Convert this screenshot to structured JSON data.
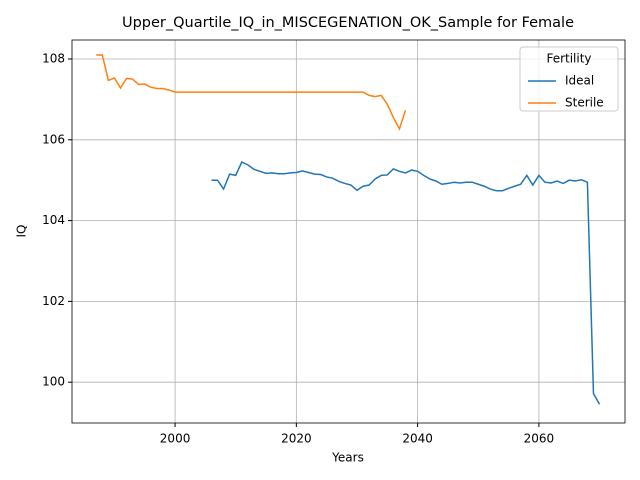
{
  "chart_data": {
    "type": "line",
    "title": "Upper_Quartile_IQ_in_MISCEGENATION_OK_Sample for Female",
    "x_label": "Years",
    "y_label": "IQ",
    "xlim": [
      1983,
      2074.2
    ],
    "ylim": [
      98.99,
      108.47
    ],
    "xticks": [
      2000,
      2020,
      2040,
      2060
    ],
    "yticks": [
      100,
      102,
      104,
      106,
      108
    ],
    "grid": true,
    "legend_title": "Fertility",
    "legend_position": "upper right",
    "series": [
      {
        "name": "Ideal",
        "color": "#1f77b4",
        "x": [
          2006,
          2007,
          2008,
          2009,
          2010,
          2011,
          2012,
          2013,
          2014,
          2015,
          2016,
          2017,
          2018,
          2019,
          2020,
          2021,
          2022,
          2023,
          2024,
          2025,
          2026,
          2027,
          2028,
          2029,
          2030,
          2031,
          2032,
          2033,
          2034,
          2035,
          2036,
          2037,
          2038,
          2039,
          2040,
          2041,
          2042,
          2043,
          2044,
          2045,
          2046,
          2047,
          2048,
          2049,
          2050,
          2051,
          2052,
          2053,
          2054,
          2055,
          2056,
          2057,
          2058,
          2059,
          2060,
          2061,
          2062,
          2063,
          2064,
          2065,
          2066,
          2067,
          2068,
          2069,
          2070
        ],
        "values": [
          105.0,
          105.0,
          104.78,
          105.15,
          105.12,
          105.45,
          105.38,
          105.27,
          105.22,
          105.17,
          105.18,
          105.16,
          105.16,
          105.18,
          105.19,
          105.23,
          105.19,
          105.15,
          105.14,
          105.08,
          105.05,
          104.97,
          104.92,
          104.88,
          104.75,
          104.85,
          104.88,
          105.03,
          105.12,
          105.13,
          105.28,
          105.22,
          105.18,
          105.25,
          105.22,
          105.12,
          105.03,
          104.98,
          104.9,
          104.92,
          104.95,
          104.93,
          104.95,
          104.95,
          104.9,
          104.85,
          104.78,
          104.74,
          104.74,
          104.8,
          104.85,
          104.9,
          105.12,
          104.88,
          105.12,
          104.95,
          104.93,
          104.98,
          104.92,
          105.0,
          104.98,
          105.01,
          104.95,
          99.72,
          99.45
        ]
      },
      {
        "name": "Sterile",
        "color": "#ff7f0e",
        "x": [
          1987,
          1988,
          1989,
          1990,
          1991,
          1992,
          1993,
          1994,
          1995,
          1996,
          1997,
          1998,
          1999,
          2000,
          2001,
          2002,
          2003,
          2004,
          2005,
          2006,
          2007,
          2008,
          2009,
          2010,
          2011,
          2012,
          2013,
          2014,
          2015,
          2016,
          2017,
          2018,
          2019,
          2020,
          2021,
          2022,
          2023,
          2024,
          2025,
          2026,
          2027,
          2028,
          2029,
          2030,
          2031,
          2032,
          2033,
          2034,
          2035,
          2036,
          2037,
          2038
        ],
        "values": [
          108.1,
          108.1,
          107.47,
          107.53,
          107.28,
          107.52,
          107.5,
          107.37,
          107.38,
          107.3,
          107.27,
          107.27,
          107.23,
          107.18,
          107.18,
          107.18,
          107.18,
          107.18,
          107.18,
          107.18,
          107.18,
          107.18,
          107.18,
          107.18,
          107.18,
          107.18,
          107.18,
          107.18,
          107.18,
          107.18,
          107.18,
          107.18,
          107.18,
          107.18,
          107.18,
          107.18,
          107.18,
          107.18,
          107.18,
          107.18,
          107.18,
          107.18,
          107.18,
          107.18,
          107.18,
          107.1,
          107.07,
          107.1,
          106.88,
          106.55,
          106.27,
          106.73
        ]
      }
    ]
  }
}
